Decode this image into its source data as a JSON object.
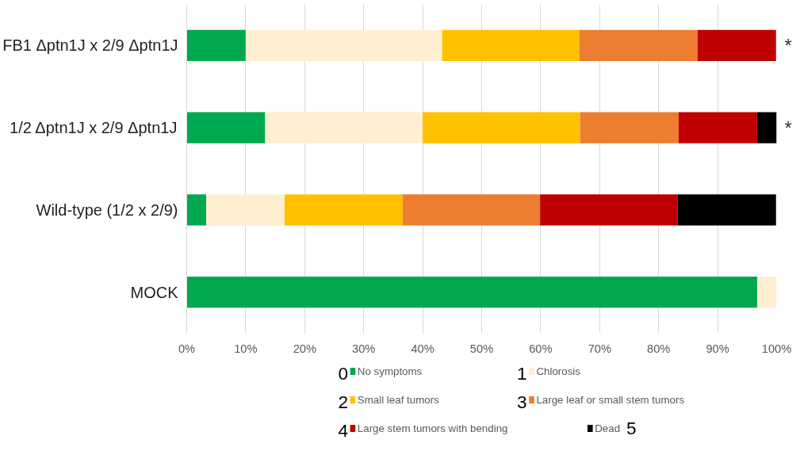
{
  "chart_data": {
    "type": "bar",
    "orientation": "horizontal",
    "stacked": true,
    "categories": [
      "FB1 Δptn1J x 2/9 Δptn1J",
      "1/2 Δptn1J x 2/9 Δptn1J",
      "Wild-type (1/2 x 2/9)",
      "MOCK"
    ],
    "series": [
      {
        "name": "No symptoms",
        "color": "#00a94f",
        "values": [
          10,
          13.3,
          3.3,
          96.7
        ]
      },
      {
        "name": "Chlorosis",
        "color": "#fdefd0",
        "values": [
          33.3,
          26.7,
          13.3,
          3.3
        ]
      },
      {
        "name": "Small leaf tumors",
        "color": "#ffc000",
        "values": [
          23.3,
          26.7,
          20,
          null
        ]
      },
      {
        "name": "Large leaf or small stem tumors",
        "color": "#ed7d31",
        "values": [
          20,
          16.7,
          23.3,
          null
        ]
      },
      {
        "name": "Large stem tumors with bending",
        "color": "#c00000",
        "values": [
          13.3,
          13.3,
          23.3,
          null
        ]
      },
      {
        "name": "Dead",
        "color": "#000000",
        "values": [
          null,
          3.3,
          16.7,
          null
        ]
      }
    ],
    "xlim": [
      0,
      100
    ],
    "xticks": [
      {
        "value": 0,
        "label": "0%"
      },
      {
        "value": 10,
        "label": "10%"
      },
      {
        "value": 20,
        "label": "20%"
      },
      {
        "value": 30,
        "label": "30%"
      },
      {
        "value": 40,
        "label": "40%"
      },
      {
        "value": 50,
        "label": "50%"
      },
      {
        "value": 60,
        "label": "60%"
      },
      {
        "value": 70,
        "label": "70%"
      },
      {
        "value": 80,
        "label": "80%"
      },
      {
        "value": 90,
        "label": "90%"
      },
      {
        "value": 100,
        "label": "100%"
      }
    ],
    "grid": "x",
    "legend": "bottom",
    "annotations": [
      {
        "text": "*",
        "x": 100,
        "y": "FB1 Δptn1J x 2/9 Δptn1J"
      },
      {
        "text": "*",
        "x": 100,
        "y": "1/2 Δptn1J x 2/9 Δptn1J"
      },
      "0",
      "1",
      "2",
      "3",
      "4",
      "5"
    ]
  }
}
